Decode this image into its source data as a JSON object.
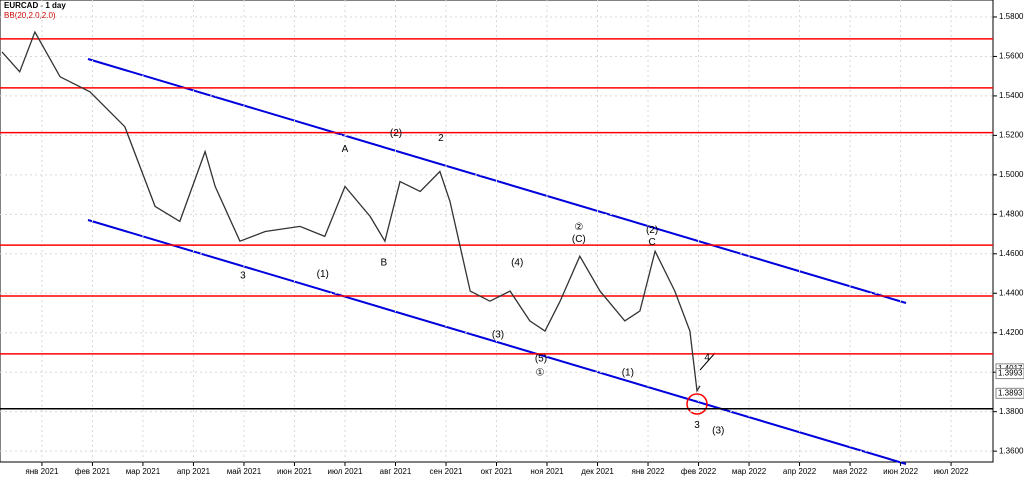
{
  "chart_data": {
    "type": "line",
    "title": "EURCAD - 1 day",
    "subtitle": "BB(20,2.0,2.0)",
    "color": "#333333",
    "x": [
      -0.79,
      -0.44,
      -0.14,
      0.36,
      0.95,
      1.64,
      2.24,
      2.73,
      3.23,
      3.43,
      3.92,
      4.42,
      5.11,
      5.6,
      6.0,
      6.5,
      6.79,
      7.09,
      7.49,
      7.88,
      8.08,
      8.48,
      8.87,
      9.27,
      9.66,
      9.96,
      10.26,
      10.65,
      11.05,
      11.54,
      11.84,
      12.14,
      12.53,
      12.83,
      12.97,
      13.03
    ],
    "values": [
      1.5623,
      1.5522,
      1.5724,
      1.5497,
      1.5421,
      1.5244,
      1.484,
      1.4764,
      1.5118,
      1.4941,
      1.4664,
      1.4713,
      1.4739,
      1.4688,
      1.4941,
      1.4789,
      1.4664,
      1.4966,
      1.4916,
      1.5017,
      1.4865,
      1.4411,
      1.436,
      1.4411,
      1.426,
      1.4209,
      1.436,
      1.4588,
      1.4411,
      1.426,
      1.431,
      1.4613,
      1.4411,
      1.4209,
      1.3906,
      1.3931
    ],
    "xlim": [
      -0.83,
      18.83
    ],
    "xticks": [
      {
        "value": 0,
        "label": "янв 2021"
      },
      {
        "value": 1,
        "label": "фев 2021"
      },
      {
        "value": 2,
        "label": "мар 2021"
      },
      {
        "value": 3,
        "label": "апр 2021"
      },
      {
        "value": 4,
        "label": "май 2021"
      },
      {
        "value": 5,
        "label": "июн 2021"
      },
      {
        "value": 6,
        "label": "июл 2021"
      },
      {
        "value": 7,
        "label": "авг 2021"
      },
      {
        "value": 8,
        "label": "сен 2021"
      },
      {
        "value": 9,
        "label": "окт 2021"
      },
      {
        "value": 10,
        "label": "ноя 2021"
      },
      {
        "value": 11,
        "label": "дек 2021"
      },
      {
        "value": 12,
        "label": "янв 2022"
      },
      {
        "value": 13,
        "label": "фев 2022"
      },
      {
        "value": 14,
        "label": "мар 2022"
      },
      {
        "value": 15,
        "label": "апр 2022"
      },
      {
        "value": 16,
        "label": "мая 2022"
      },
      {
        "value": 17,
        "label": "июн 2022"
      },
      {
        "value": 18,
        "label": "июл 2022"
      }
    ],
    "ylim": [
      1.3545,
      1.5886
    ],
    "yticks": [
      {
        "value": 1.58,
        "label": "1.5800"
      },
      {
        "value": 1.56,
        "label": "1.5600"
      },
      {
        "value": 1.54,
        "label": "1.5400"
      },
      {
        "value": 1.52,
        "label": "1.5200"
      },
      {
        "value": 1.5,
        "label": "1.5000"
      },
      {
        "value": 1.48,
        "label": "1.4800"
      },
      {
        "value": 1.46,
        "label": "1.4600"
      },
      {
        "value": 1.44,
        "label": "1.4400"
      },
      {
        "value": 1.42,
        "label": "1.4200"
      },
      {
        "value": 1.4,
        "label": "1.4000"
      },
      {
        "value": 1.38,
        "label": "1.3800"
      },
      {
        "value": 1.36,
        "label": "1.3600"
      }
    ],
    "grid": true,
    "levels": [
      1.5689,
      1.5441,
      1.5214,
      1.4644,
      1.4386,
      1.4093
    ],
    "level_color": "#ff0000",
    "support": 1.3815,
    "price_labels": [
      {
        "value": 1.4017,
        "label": "1.4017"
      },
      {
        "value": 1.3993,
        "label": "1.3993"
      },
      {
        "value": 1.3893,
        "label": "1.3893"
      }
    ],
    "annotations": [
      {
        "text": "3",
        "x": 3.98,
        "y": 1.4487
      },
      {
        "text": "(1)",
        "x": 5.56,
        "y": 1.4497
      },
      {
        "text": "A",
        "x": 6.0,
        "y": 1.5128
      },
      {
        "text": "B",
        "x": 6.77,
        "y": 1.4553
      },
      {
        "text": "(2)",
        "x": 7.01,
        "y": 1.5209
      },
      {
        "text": "2",
        "x": 7.9,
        "y": 1.5184
      },
      {
        "text": "(3)",
        "x": 9.03,
        "y": 1.4189
      },
      {
        "text": "(4)",
        "x": 9.41,
        "y": 1.4553
      },
      {
        "text": "(5)",
        "x": 9.88,
        "y": 1.4068
      },
      {
        "text": "①",
        "x": 9.86,
        "y": 1.3997
      },
      {
        "text": "②",
        "x": 10.63,
        "y": 1.4734
      },
      {
        "text": "(C)",
        "x": 10.63,
        "y": 1.4674
      },
      {
        "text": "(1)",
        "x": 11.6,
        "y": 1.3997
      },
      {
        "text": "(2)",
        "x": 12.08,
        "y": 1.4719
      },
      {
        "text": "C",
        "x": 12.08,
        "y": 1.4659
      },
      {
        "text": "4",
        "x": 13.17,
        "y": 1.4073
      },
      {
        "text": "3",
        "x": 12.97,
        "y": 1.373
      },
      {
        "text": "(3)",
        "x": 13.39,
        "y": 1.3704
      }
    ]
  }
}
